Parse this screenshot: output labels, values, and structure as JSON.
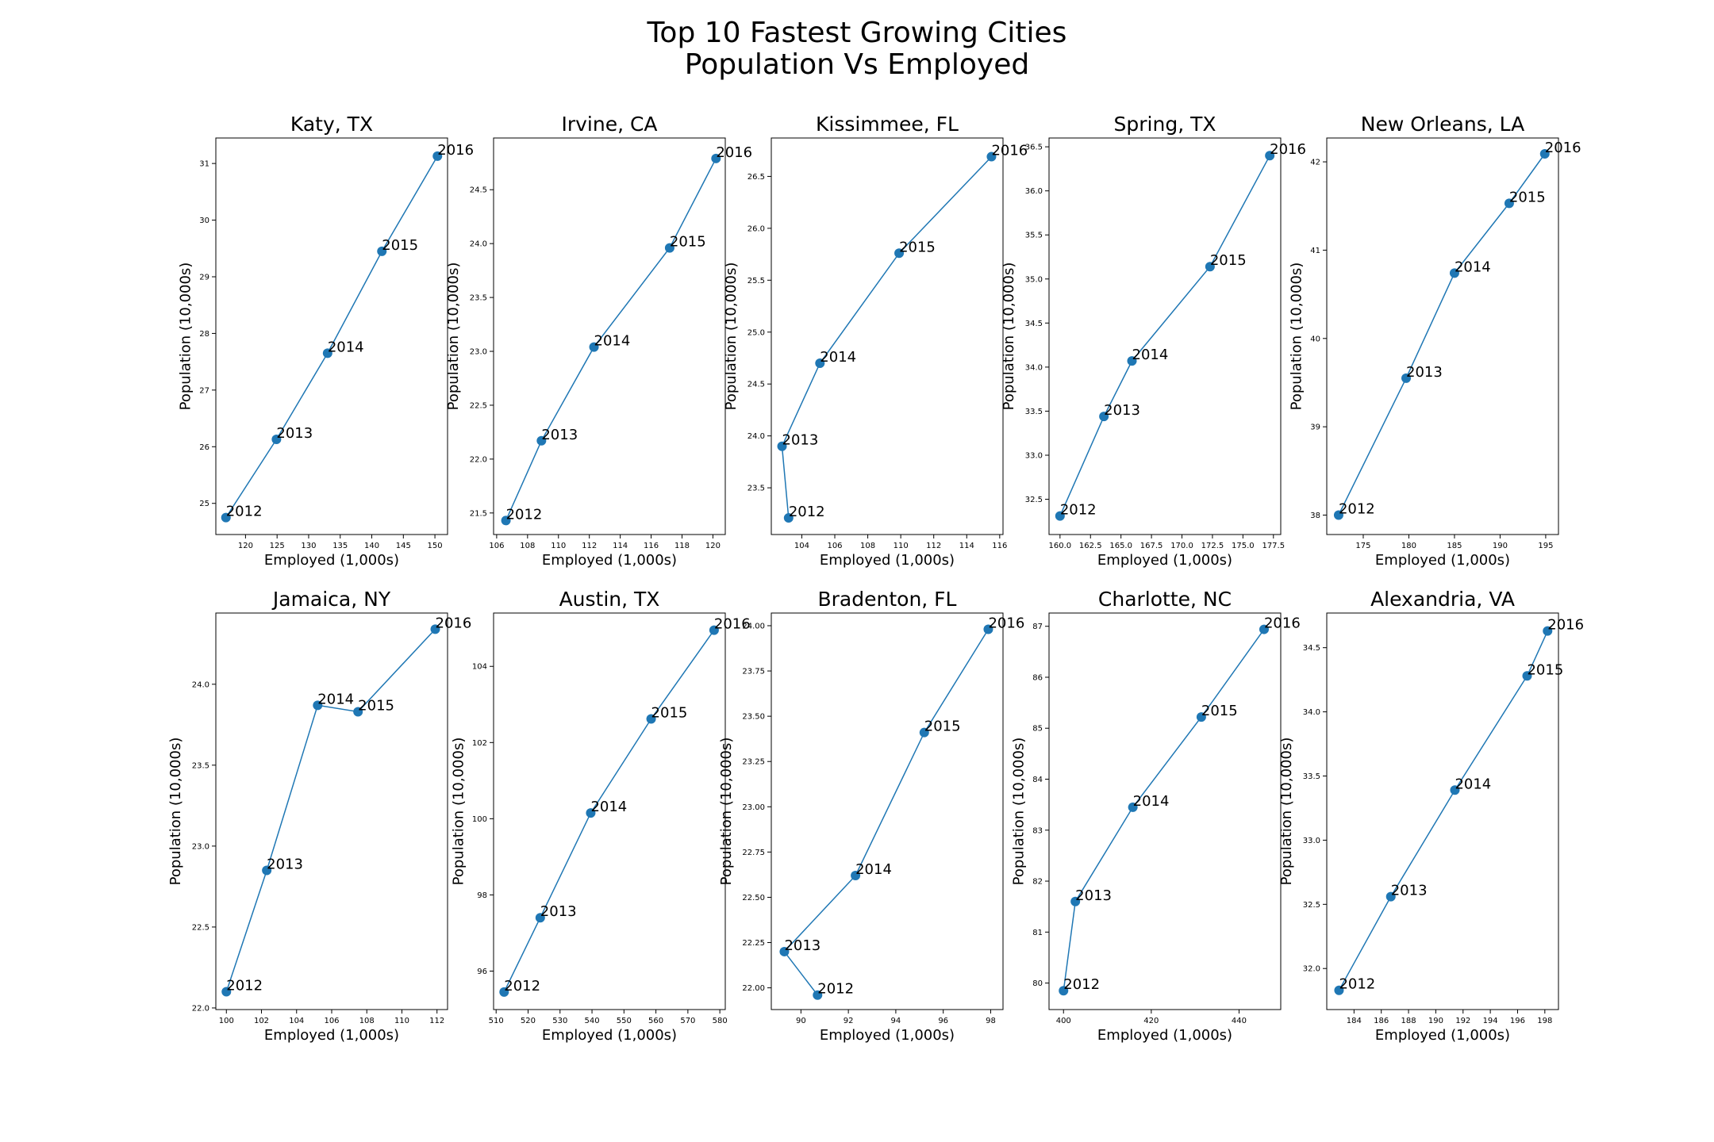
{
  "figure": {
    "title_line1": "Top 10 Fastest Growing Cities",
    "title_line2": "Population Vs Employed"
  },
  "style": {
    "line_color": "#1f77b4",
    "marker_color": "#1f77b4",
    "axis_color": "#000000"
  },
  "chart_data": [
    {
      "type": "line",
      "title": "Katy, TX",
      "xlabel": "Employed (1,000s)",
      "ylabel": "Population (10,000s)",
      "xlim": [
        115.3,
        152.0
      ],
      "ylim": [
        24.45,
        31.45
      ],
      "xticks": [
        120,
        125,
        130,
        135,
        140,
        145,
        150
      ],
      "xtick_labels": [
        "120",
        "125",
        "130",
        "135",
        "140",
        "145",
        "150"
      ],
      "yticks": [
        25,
        26,
        27,
        28,
        29,
        30,
        31
      ],
      "ytick_labels": [
        "25",
        "26",
        "27",
        "28",
        "29",
        "30",
        "31"
      ],
      "points": [
        {
          "label": "2012",
          "x": 116.9,
          "y": 24.75
        },
        {
          "label": "2013",
          "x": 124.9,
          "y": 26.13
        },
        {
          "label": "2014",
          "x": 133.0,
          "y": 27.65
        },
        {
          "label": "2015",
          "x": 141.6,
          "y": 29.45
        },
        {
          "label": "2016",
          "x": 150.4,
          "y": 31.13
        }
      ]
    },
    {
      "type": "line",
      "title": "Irvine, CA",
      "xlabel": "Employed (1,000s)",
      "ylabel": "Population (10,000s)",
      "xlim": [
        105.8,
        120.8
      ],
      "ylim": [
        21.3,
        24.98
      ],
      "xticks": [
        106,
        108,
        110,
        112,
        114,
        116,
        118,
        120
      ],
      "xtick_labels": [
        "106",
        "108",
        "110",
        "112",
        "114",
        "116",
        "118",
        "120"
      ],
      "yticks": [
        21.5,
        22.0,
        22.5,
        23.0,
        23.5,
        24.0,
        24.5
      ],
      "ytick_labels": [
        "21.5",
        "22.0",
        "22.5",
        "23.0",
        "23.5",
        "24.0",
        "24.5"
      ],
      "points": [
        {
          "label": "2012",
          "x": 106.6,
          "y": 21.43
        },
        {
          "label": "2013",
          "x": 108.9,
          "y": 22.17
        },
        {
          "label": "2014",
          "x": 112.3,
          "y": 23.04
        },
        {
          "label": "2015",
          "x": 117.2,
          "y": 23.96
        },
        {
          "label": "2016",
          "x": 120.2,
          "y": 24.79
        }
      ]
    },
    {
      "type": "line",
      "title": "Kissimmee, FL",
      "xlabel": "Employed (1,000s)",
      "ylabel": "Population (10,000s)",
      "xlim": [
        102.15,
        116.2
      ],
      "ylim": [
        23.05,
        26.87
      ],
      "xticks": [
        104,
        106,
        108,
        110,
        112,
        114,
        116
      ],
      "xtick_labels": [
        "104",
        "106",
        "108",
        "110",
        "112",
        "114",
        "116"
      ],
      "yticks": [
        23.5,
        24.0,
        24.5,
        25.0,
        25.5,
        26.0,
        26.5
      ],
      "ytick_labels": [
        "23.5",
        "24.0",
        "24.5",
        "25.0",
        "25.5",
        "26.0",
        "26.5"
      ],
      "points": [
        {
          "label": "2012",
          "x": 103.2,
          "y": 23.21
        },
        {
          "label": "2013",
          "x": 102.8,
          "y": 23.9
        },
        {
          "label": "2014",
          "x": 105.1,
          "y": 24.7
        },
        {
          "label": "2015",
          "x": 109.9,
          "y": 25.76
        },
        {
          "label": "2016",
          "x": 115.5,
          "y": 26.69
        }
      ]
    },
    {
      "type": "line",
      "title": "Spring, TX",
      "xlabel": "Employed (1,000s)",
      "ylabel": "Population (10,000s)",
      "xlim": [
        159.1,
        178.1
      ],
      "ylim": [
        32.1,
        36.6
      ],
      "xticks": [
        160.0,
        162.5,
        165.0,
        167.5,
        170.0,
        172.5,
        175.0,
        177.5
      ],
      "xtick_labels": [
        "160.0",
        "162.5",
        "165.0",
        "167.5",
        "170.0",
        "172.5",
        "175.0",
        "177.5"
      ],
      "yticks": [
        32.5,
        33.0,
        33.5,
        34.0,
        34.5,
        35.0,
        35.5,
        36.0,
        36.5
      ],
      "ytick_labels": [
        "32.5",
        "33.0",
        "33.5",
        "34.0",
        "34.5",
        "35.0",
        "35.5",
        "36.0",
        "36.5"
      ],
      "points": [
        {
          "label": "2012",
          "x": 160.0,
          "y": 32.31
        },
        {
          "label": "2013",
          "x": 163.6,
          "y": 33.44
        },
        {
          "label": "2014",
          "x": 165.9,
          "y": 34.07
        },
        {
          "label": "2015",
          "x": 172.3,
          "y": 35.14
        },
        {
          "label": "2016",
          "x": 177.2,
          "y": 36.4
        }
      ]
    },
    {
      "type": "line",
      "title": "New Orleans, LA",
      "xlabel": "Employed (1,000s)",
      "ylabel": "Population (10,000s)",
      "xlim": [
        171.0,
        196.4
      ],
      "ylim": [
        37.78,
        42.27
      ],
      "xticks": [
        175,
        180,
        185,
        190,
        195
      ],
      "xtick_labels": [
        "175",
        "180",
        "185",
        "190",
        "195"
      ],
      "yticks": [
        38,
        39,
        40,
        41,
        42
      ],
      "ytick_labels": [
        "38",
        "39",
        "40",
        "41",
        "42"
      ],
      "points": [
        {
          "label": "2012",
          "x": 172.3,
          "y": 38.0
        },
        {
          "label": "2013",
          "x": 179.7,
          "y": 39.55
        },
        {
          "label": "2014",
          "x": 185.0,
          "y": 40.74
        },
        {
          "label": "2015",
          "x": 191.0,
          "y": 41.53
        },
        {
          "label": "2016",
          "x": 194.9,
          "y": 42.09
        }
      ]
    },
    {
      "type": "line",
      "title": "Jamaica, NY",
      "xlabel": "Employed (1,000s)",
      "ylabel": "Population (10,000s)",
      "xlim": [
        99.4,
        112.6
      ],
      "ylim": [
        21.99,
        24.44
      ],
      "xticks": [
        100,
        102,
        104,
        106,
        108,
        110,
        112
      ],
      "xtick_labels": [
        "100",
        "102",
        "104",
        "106",
        "108",
        "110",
        "112"
      ],
      "yticks": [
        22.0,
        22.5,
        23.0,
        23.5,
        24.0
      ],
      "ytick_labels": [
        "22.0",
        "22.5",
        "23.0",
        "23.5",
        "24.0"
      ],
      "points": [
        {
          "label": "2012",
          "x": 100.0,
          "y": 22.1
        },
        {
          "label": "2013",
          "x": 102.3,
          "y": 22.85
        },
        {
          "label": "2014",
          "x": 105.2,
          "y": 23.87
        },
        {
          "label": "2015",
          "x": 107.5,
          "y": 23.83
        },
        {
          "label": "2016",
          "x": 111.9,
          "y": 24.34
        }
      ]
    },
    {
      "type": "line",
      "title": "Austin, TX",
      "xlabel": "Employed (1,000s)",
      "ylabel": "Population (10,000s)",
      "xlim": [
        509.2,
        581.7
      ],
      "ylim": [
        94.99,
        105.4
      ],
      "xticks": [
        510,
        520,
        530,
        540,
        550,
        560,
        570,
        580
      ],
      "xtick_labels": [
        "510",
        "520",
        "530",
        "540",
        "550",
        "560",
        "570",
        "580"
      ],
      "yticks": [
        96,
        98,
        100,
        102,
        104
      ],
      "ytick_labels": [
        "96",
        "98",
        "100",
        "102",
        "104"
      ],
      "points": [
        {
          "label": "2012",
          "x": 512.5,
          "y": 95.45
        },
        {
          "label": "2013",
          "x": 523.8,
          "y": 97.4
        },
        {
          "label": "2014",
          "x": 539.6,
          "y": 100.15
        },
        {
          "label": "2015",
          "x": 558.5,
          "y": 102.62
        },
        {
          "label": "2016",
          "x": 578.2,
          "y": 104.95
        }
      ]
    },
    {
      "type": "line",
      "title": "Bradenton, FL",
      "xlabel": "Employed (1,000s)",
      "ylabel": "Population (10,000s)",
      "xlim": [
        88.75,
        98.52
      ],
      "ylim": [
        21.88,
        24.07
      ],
      "xticks": [
        90,
        92,
        94,
        96,
        98
      ],
      "xtick_labels": [
        "90",
        "92",
        "94",
        "96",
        "98"
      ],
      "yticks": [
        22.0,
        22.25,
        22.5,
        22.75,
        23.0,
        23.25,
        23.5,
        23.75,
        24.0
      ],
      "ytick_labels": [
        "22.00",
        "22.25",
        "22.50",
        "22.75",
        "23.00",
        "23.25",
        "23.50",
        "23.75",
        "24.00"
      ],
      "points": [
        {
          "label": "2012",
          "x": 90.7,
          "y": 21.96
        },
        {
          "label": "2013",
          "x": 89.3,
          "y": 22.2
        },
        {
          "label": "2014",
          "x": 92.3,
          "y": 22.62
        },
        {
          "label": "2015",
          "x": 95.2,
          "y": 23.41
        },
        {
          "label": "2016",
          "x": 97.9,
          "y": 23.98
        }
      ]
    },
    {
      "type": "line",
      "title": "Charlotte, NC",
      "xlabel": "Employed (1,000s)",
      "ylabel": "Population (10,000s)",
      "xlim": [
        396.7,
        449.5
      ],
      "ylim": [
        79.48,
        87.26
      ],
      "xticks": [
        400,
        420,
        440
      ],
      "xtick_labels": [
        "400",
        "420",
        "440"
      ],
      "yticks": [
        80,
        81,
        82,
        83,
        84,
        85,
        86,
        87
      ],
      "ytick_labels": [
        "80",
        "81",
        "82",
        "83",
        "84",
        "85",
        "86",
        "87"
      ],
      "points": [
        {
          "label": "2012",
          "x": 400.0,
          "y": 79.85
        },
        {
          "label": "2013",
          "x": 402.7,
          "y": 81.6
        },
        {
          "label": "2014",
          "x": 415.8,
          "y": 83.45
        },
        {
          "label": "2015",
          "x": 431.4,
          "y": 85.22
        },
        {
          "label": "2016",
          "x": 445.7,
          "y": 86.94
        }
      ]
    },
    {
      "type": "line",
      "title": "Alexandria, VA",
      "xlabel": "Employed (1,000s)",
      "ylabel": "Population (10,000s)",
      "xlim": [
        182.0,
        199.0
      ],
      "ylim": [
        31.68,
        34.77
      ],
      "xticks": [
        184,
        186,
        188,
        190,
        192,
        194,
        196,
        198
      ],
      "xtick_labels": [
        "184",
        "186",
        "188",
        "190",
        "192",
        "194",
        "196",
        "198"
      ],
      "yticks": [
        32.0,
        32.5,
        33.0,
        33.5,
        34.0,
        34.5
      ],
      "ytick_labels": [
        "32.0",
        "32.5",
        "33.0",
        "33.5",
        "34.0",
        "34.5"
      ],
      "points": [
        {
          "label": "2012",
          "x": 182.9,
          "y": 31.83
        },
        {
          "label": "2013",
          "x": 186.7,
          "y": 32.56
        },
        {
          "label": "2014",
          "x": 191.4,
          "y": 33.39
        },
        {
          "label": "2015",
          "x": 196.7,
          "y": 34.28
        },
        {
          "label": "2016",
          "x": 198.2,
          "y": 34.63
        }
      ]
    }
  ]
}
